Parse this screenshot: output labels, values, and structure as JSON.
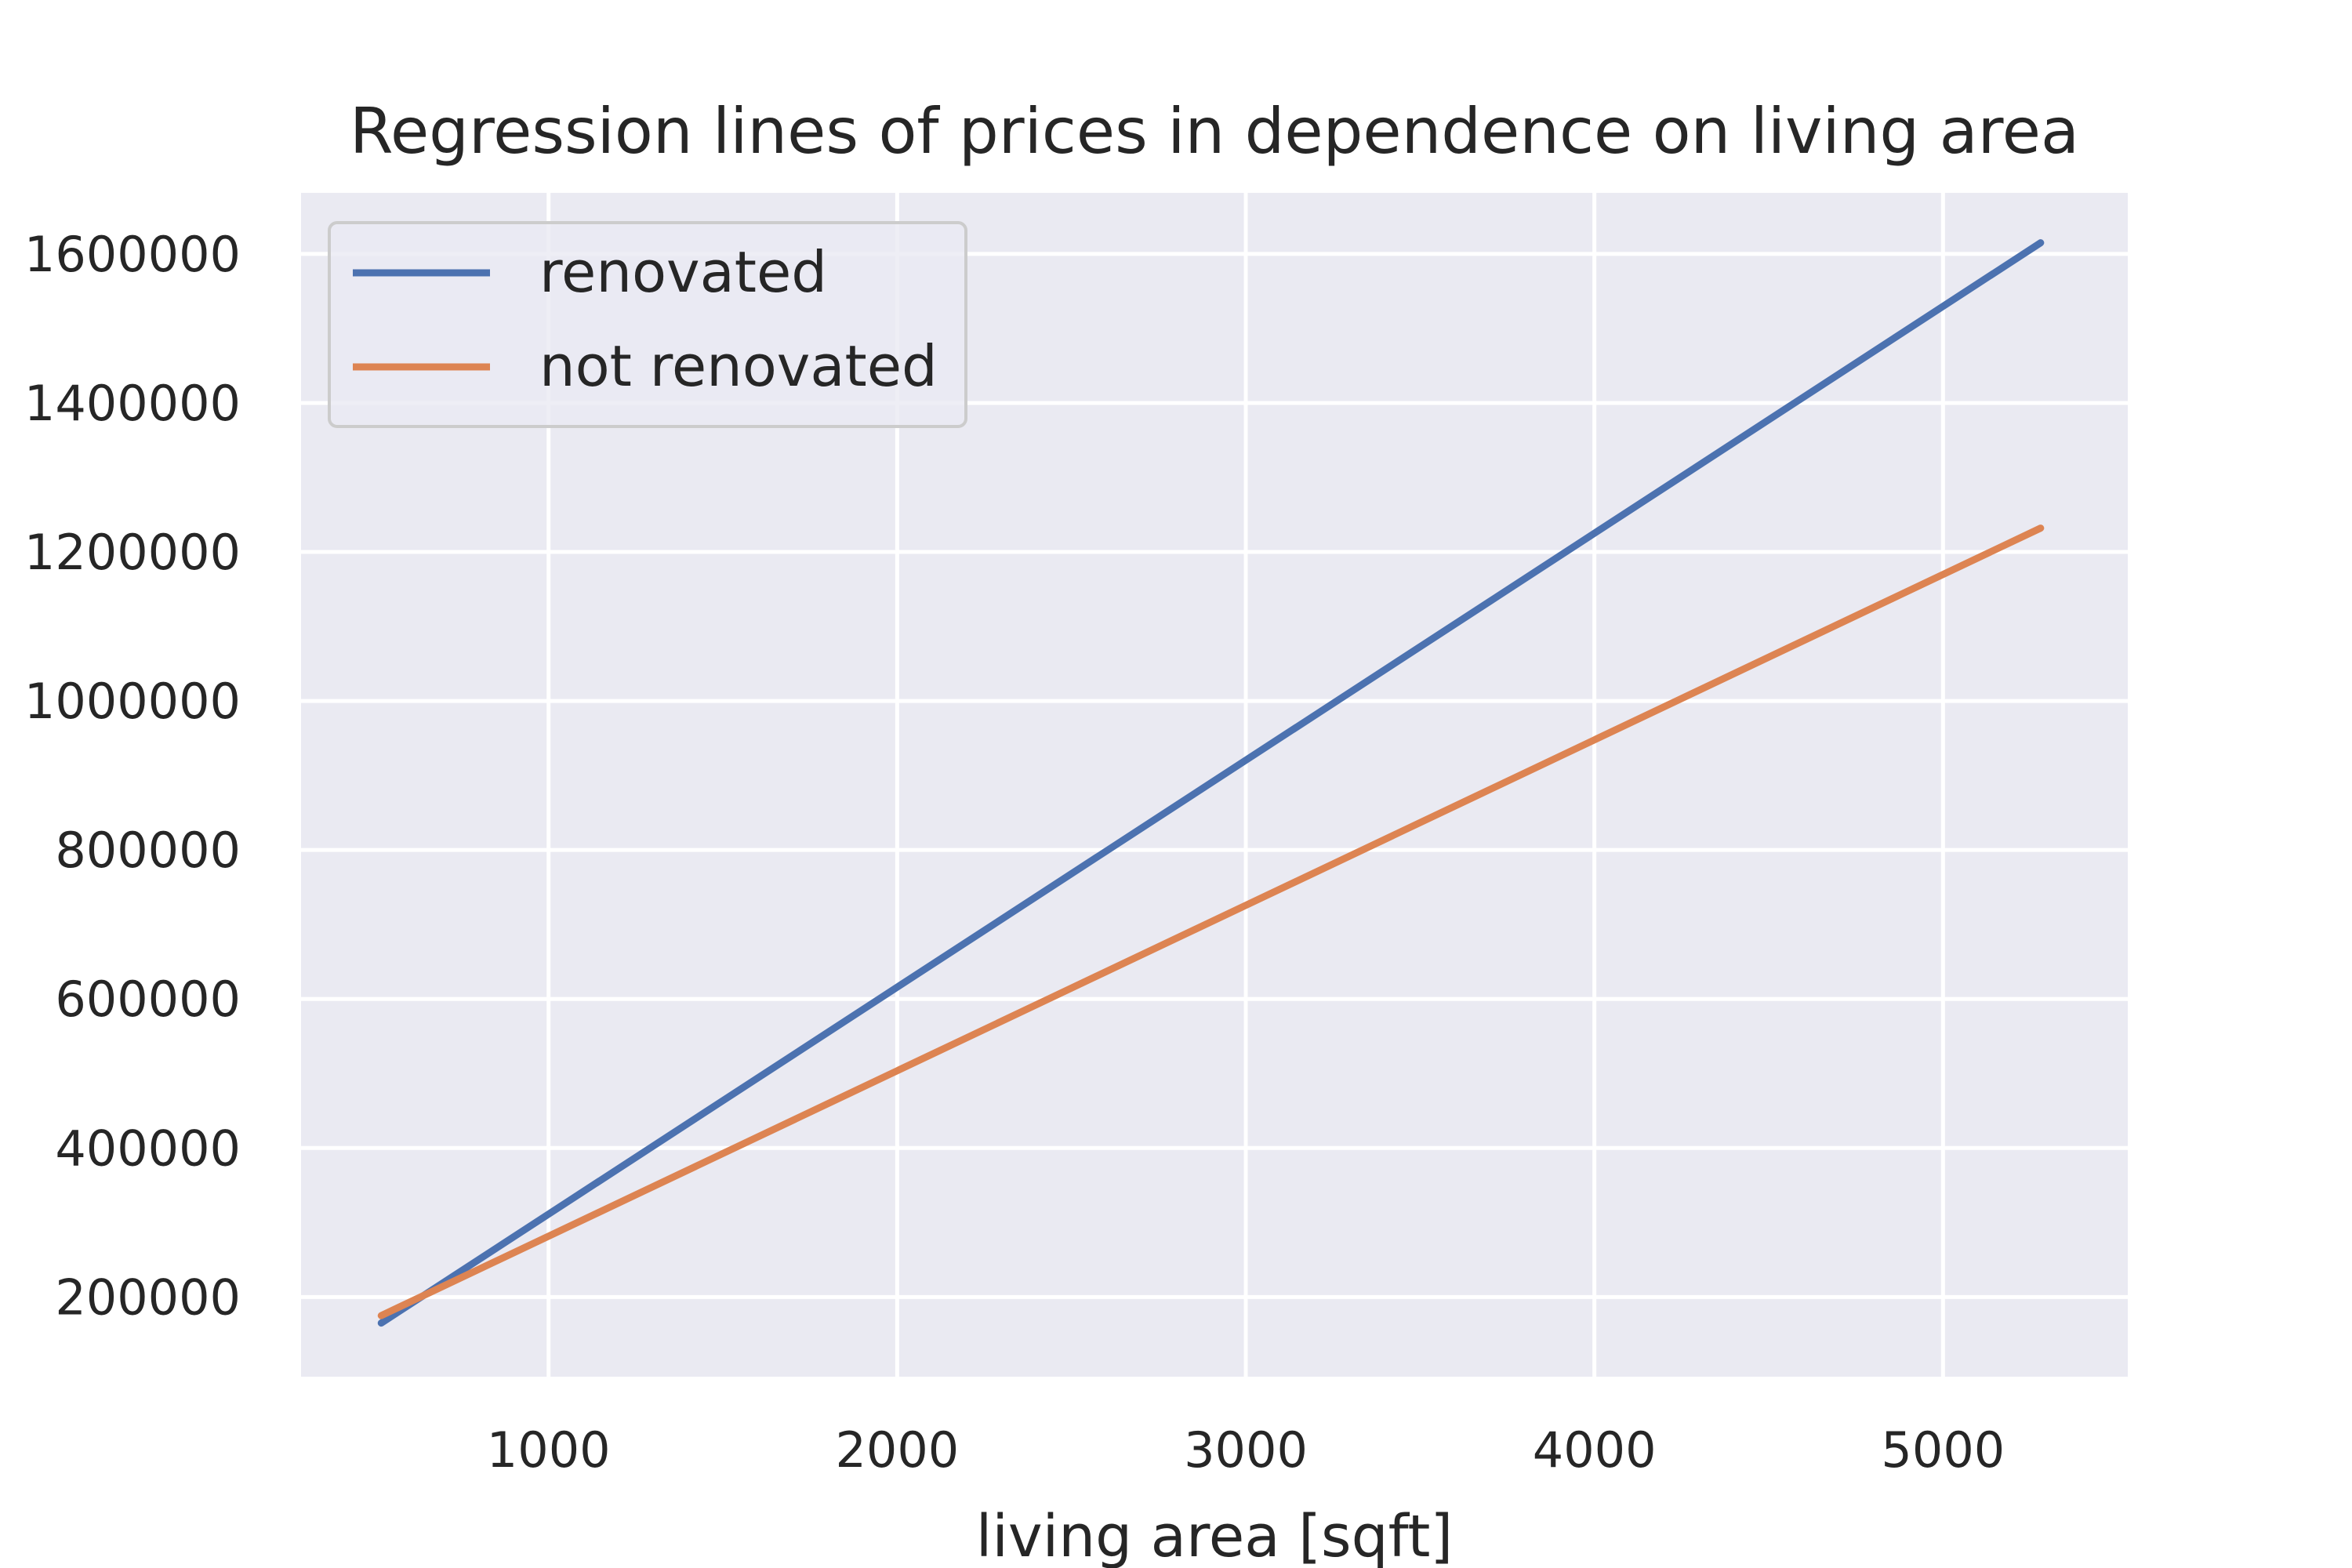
{
  "chart_data": {
    "type": "line",
    "title": "Regression lines of prices in dependence on living area",
    "xlabel": "living area [sqft]",
    "ylabel": "",
    "xlim": [
      290,
      5530
    ],
    "ylim": [
      93000,
      1682000
    ],
    "xticks": [
      1000,
      2000,
      3000,
      4000,
      5000
    ],
    "yticks": [
      200000,
      400000,
      600000,
      800000,
      1000000,
      1200000,
      1400000,
      1600000
    ],
    "grid": true,
    "legend_position": "top-left",
    "background_color": "#EAEAF2",
    "grid_color": "#FFFFFF",
    "series": [
      {
        "name": "renovated",
        "color": "#4C72B0",
        "x": [
          520,
          5280
        ],
        "y": [
          165000,
          1615000
        ]
      },
      {
        "name": "not renovated",
        "color": "#DD8452",
        "x": [
          520,
          5280
        ],
        "y": [
          175000,
          1232000
        ]
      }
    ]
  }
}
